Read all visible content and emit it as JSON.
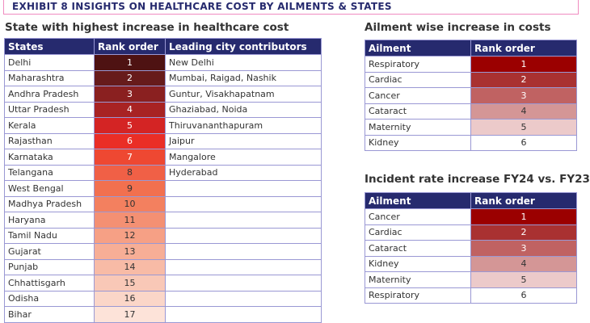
{
  "banner": {
    "title": "EXHIBIT 8 INSIGHTS ON HEALTHCARE COST BY AILMENTS & STATES",
    "border_color": "#f08cc0"
  },
  "header_color": "#262a6e",
  "states_table": {
    "title": "State with highest increase in healthcare cost",
    "headers": [
      "States",
      "Rank order",
      "Leading city contributors"
    ],
    "rows": [
      {
        "state": "Delhi",
        "rank": "1",
        "cities": "New Delhi",
        "color": "#4e1212",
        "text": "#fff"
      },
      {
        "state": "Maharashtra",
        "rank": "2",
        "cities": "Mumbai, Raigad, Nashik",
        "color": "#671b1b",
        "text": "#fff"
      },
      {
        "state": "Andhra Pradesh",
        "rank": "3",
        "cities": "Guntur, Visakhapatnam",
        "color": "#8a2020",
        "text": "#fff"
      },
      {
        "state": "Uttar Pradesh",
        "rank": "4",
        "cities": "Ghaziabad, Noida",
        "color": "#a82323",
        "text": "#fff"
      },
      {
        "state": "Kerala",
        "rank": "5",
        "cities": "Thiruvananthapuram",
        "color": "#d42424",
        "text": "#fff"
      },
      {
        "state": "Rajasthan",
        "rank": "6",
        "cities": "Jaipur",
        "color": "#ea2e26",
        "text": "#fff"
      },
      {
        "state": "Karnataka",
        "rank": "7",
        "cities": "Mangalore",
        "color": "#ee4832",
        "text": "#fff"
      },
      {
        "state": "Telangana",
        "rank": "8",
        "cities": "Hyderabad",
        "color": "#f06046",
        "text": "#333"
      },
      {
        "state": "West Bengal",
        "rank": "9",
        "cities": "",
        "color": "#f2704f",
        "text": "#333"
      },
      {
        "state": "Madhya Pradesh",
        "rank": "10",
        "cities": "",
        "color": "#f3805f",
        "text": "#333"
      },
      {
        "state": "Haryana",
        "rank": "11",
        "cities": "",
        "color": "#f49073",
        "text": "#333"
      },
      {
        "state": "Tamil Nadu",
        "rank": "12",
        "cities": "",
        "color": "#f6a085",
        "text": "#333"
      },
      {
        "state": "Gujarat",
        "rank": "13",
        "cities": "",
        "color": "#f7ae96",
        "text": "#333"
      },
      {
        "state": "Punjab",
        "rank": "14",
        "cities": "",
        "color": "#f8bba6",
        "text": "#333"
      },
      {
        "state": "Chhattisgarh",
        "rank": "15",
        "cities": "",
        "color": "#f9c8b7",
        "text": "#333"
      },
      {
        "state": "Odisha",
        "rank": "16",
        "cities": "",
        "color": "#fbd6c8",
        "text": "#333"
      },
      {
        "state": "Bihar",
        "rank": "17",
        "cities": "",
        "color": "#fde3d9",
        "text": "#333"
      }
    ]
  },
  "ailment_table": {
    "title": "Ailment wise increase in costs",
    "headers": [
      "Ailment",
      "Rank order"
    ],
    "rows": [
      {
        "ailment": "Respiratory",
        "rank": "1",
        "color": "#9b0000",
        "text": "#fff"
      },
      {
        "ailment": "Cardiac",
        "rank": "2",
        "color": "#a93131",
        "text": "#fff"
      },
      {
        "ailment": "Cancer",
        "rank": "3",
        "color": "#c06262",
        "text": "#fff"
      },
      {
        "ailment": "Cataract",
        "rank": "4",
        "color": "#d49696",
        "text": "#333"
      },
      {
        "ailment": "Maternity",
        "rank": "5",
        "color": "#eccaca",
        "text": "#333"
      },
      {
        "ailment": "Kidney",
        "rank": "6",
        "color": "#ffffff",
        "text": "#333"
      }
    ]
  },
  "incident_table": {
    "title": "Incident rate increase FY24 vs. FY23",
    "headers": [
      "Ailment",
      "Rank order"
    ],
    "rows": [
      {
        "ailment": "Cancer",
        "rank": "1",
        "color": "#9b0000",
        "text": "#fff"
      },
      {
        "ailment": "Cardiac",
        "rank": "2",
        "color": "#a93131",
        "text": "#fff"
      },
      {
        "ailment": "Cataract",
        "rank": "3",
        "color": "#c06262",
        "text": "#fff"
      },
      {
        "ailment": "Kidney",
        "rank": "4",
        "color": "#d49696",
        "text": "#333"
      },
      {
        "ailment": "Maternity",
        "rank": "5",
        "color": "#eccaca",
        "text": "#333"
      },
      {
        "ailment": "Respiratory",
        "rank": "6",
        "color": "#ffffff",
        "text": "#333"
      }
    ]
  }
}
